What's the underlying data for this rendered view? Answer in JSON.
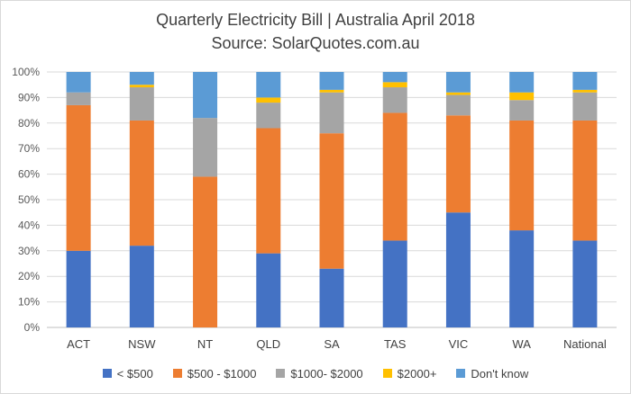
{
  "chart_data": {
    "type": "bar",
    "stacked": true,
    "title": "Quarterly Electricity Bill | Australia April 2018",
    "subtitle": "Source: SolarQuotes.com.au",
    "xlabel": "",
    "ylabel": "",
    "ylim": [
      0,
      100
    ],
    "y_ticks": [
      "0%",
      "10%",
      "20%",
      "30%",
      "40%",
      "50%",
      "60%",
      "70%",
      "80%",
      "90%",
      "100%"
    ],
    "grid": true,
    "legend_position": "bottom",
    "categories": [
      "ACT",
      "NSW",
      "NT",
      "QLD",
      "SA",
      "TAS",
      "VIC",
      "WA",
      "National"
    ],
    "series": [
      {
        "name": "< $500",
        "color": "#4472C4",
        "values": [
          30,
          32,
          0,
          29,
          23,
          34,
          45,
          38,
          34
        ]
      },
      {
        "name": "$500 - $1000",
        "color": "#ED7D31",
        "values": [
          57,
          49,
          59,
          49,
          53,
          50,
          38,
          43,
          47
        ]
      },
      {
        "name": "$1000- $2000",
        "color": "#A5A5A5",
        "values": [
          5,
          13,
          23,
          10,
          16,
          10,
          8,
          8,
          11
        ]
      },
      {
        "name": "$2000+",
        "color": "#FFC000",
        "values": [
          0,
          1,
          0,
          2,
          1,
          2,
          1,
          3,
          1
        ]
      },
      {
        "name": "Don't know",
        "color": "#5B9BD5",
        "values": [
          8,
          5,
          18,
          10,
          7,
          4,
          8,
          8,
          7
        ]
      }
    ]
  }
}
